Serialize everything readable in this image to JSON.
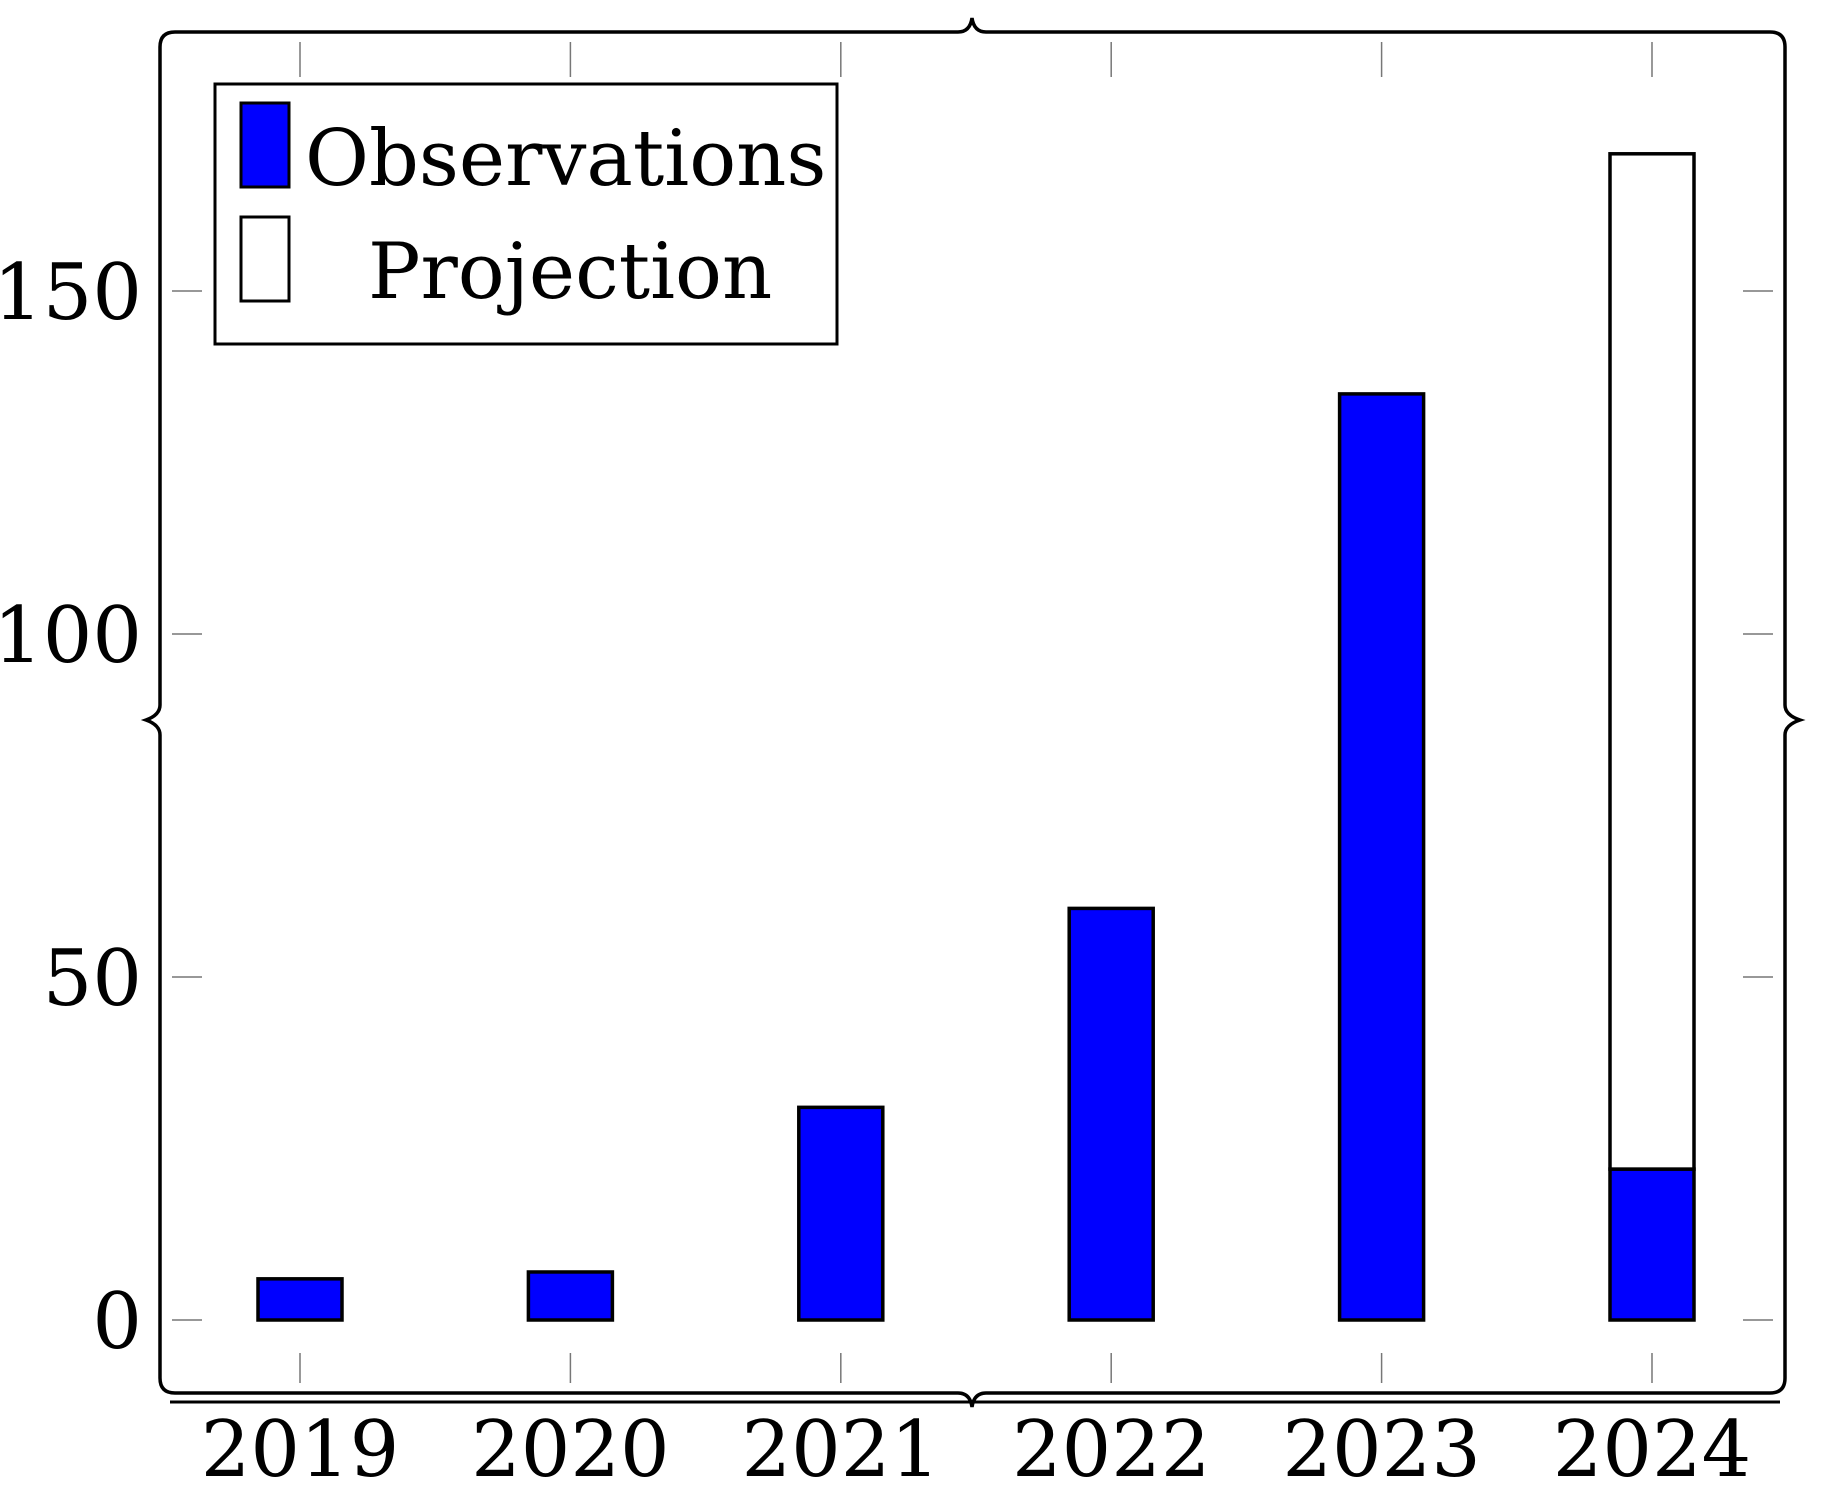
{
  "chart_data": {
    "type": "bar",
    "stacked": true,
    "categories": [
      "2019",
      "2020",
      "2021",
      "2022",
      "2023",
      "2024"
    ],
    "series": [
      {
        "name": "Observations",
        "color": "#0000ff",
        "values": [
          6,
          7,
          31,
          60,
          135,
          22
        ]
      },
      {
        "name": "Projection",
        "color": "#ffffff",
        "values": [
          0,
          0,
          0,
          0,
          0,
          148
        ]
      }
    ],
    "y_ticks": [
      "0",
      "50",
      "100",
      "150"
    ],
    "ylim": [
      -10,
      188
    ],
    "title": "",
    "xlabel": "",
    "ylabel": "",
    "grid": false,
    "legend_position": "top-left"
  }
}
